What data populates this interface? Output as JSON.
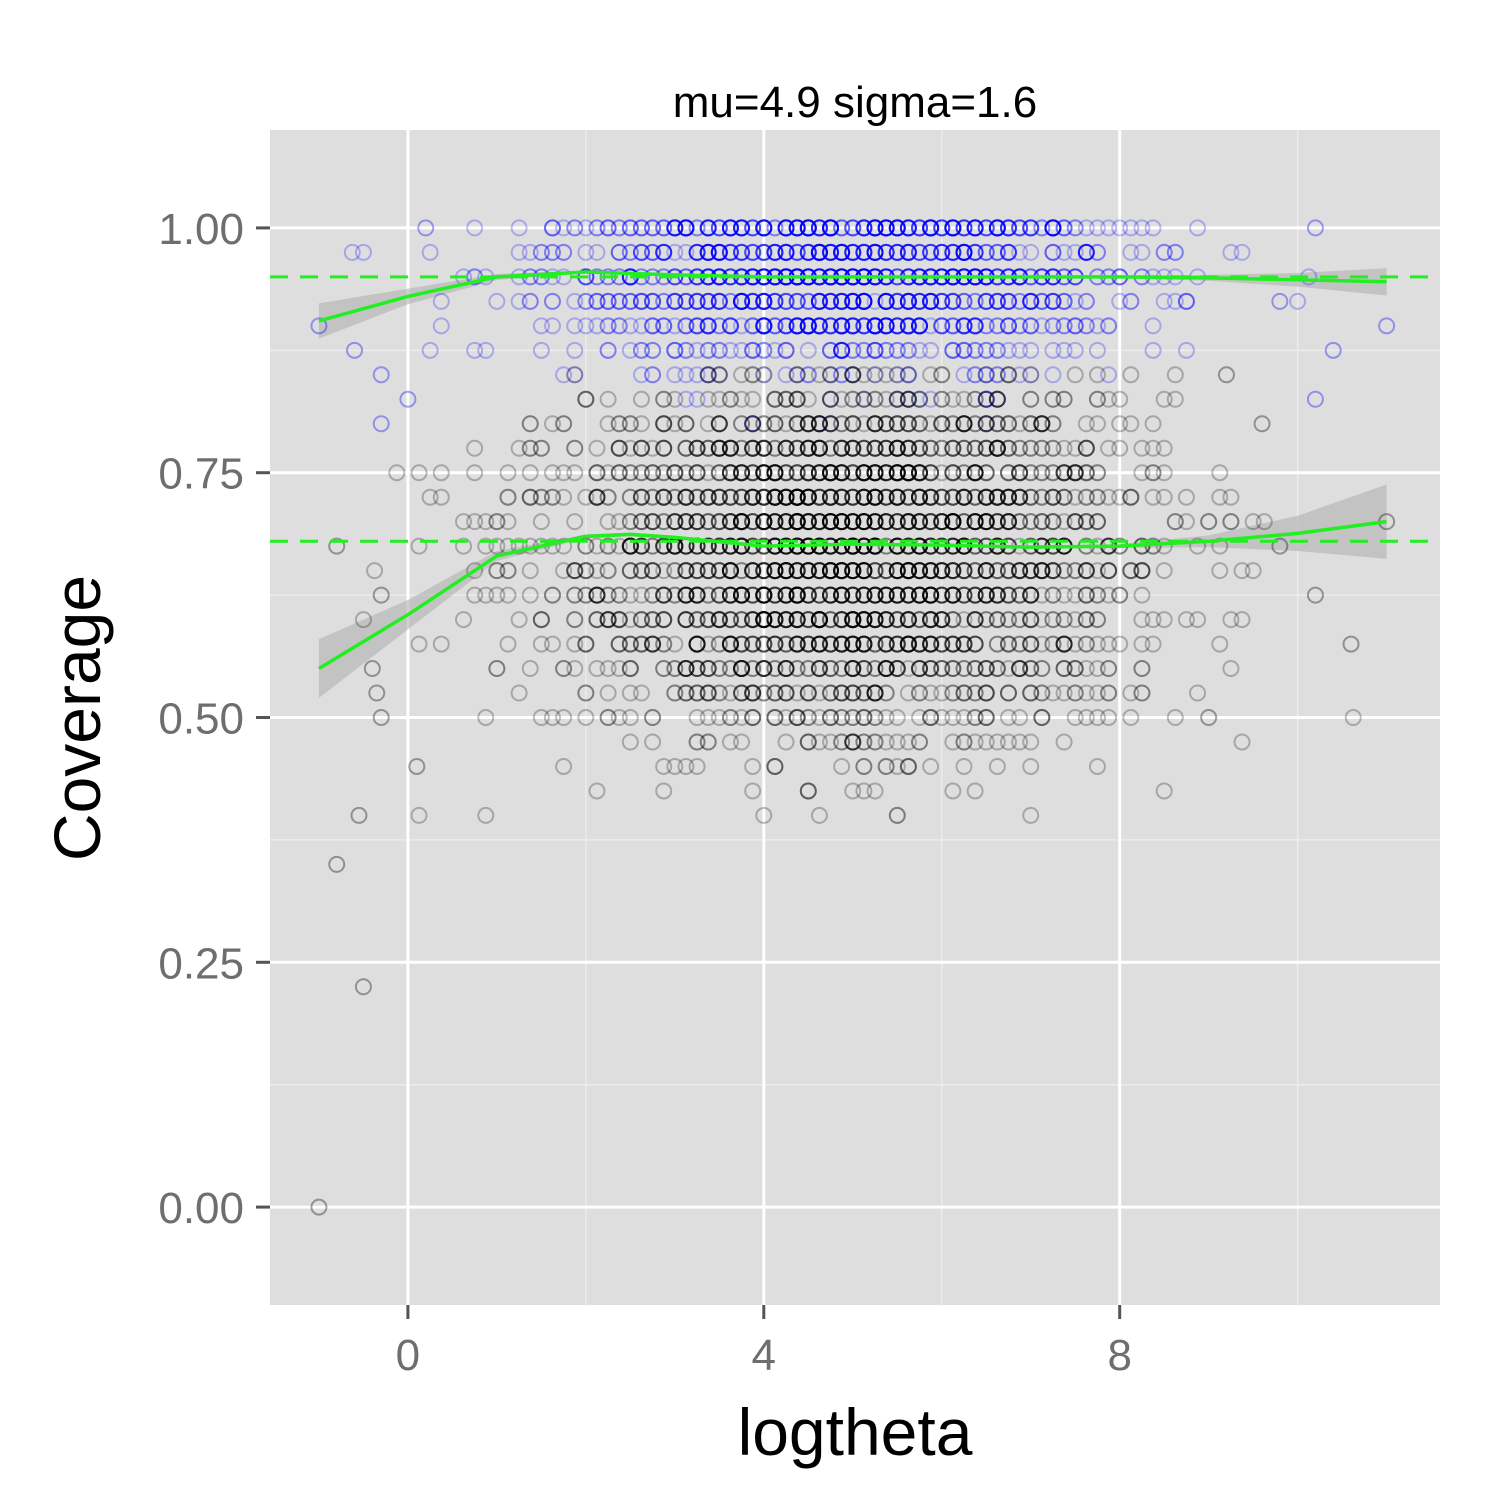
{
  "chart_data": {
    "type": "scatter",
    "title": "mu=4.9 sigma=1.6",
    "xlabel": "logtheta",
    "ylabel": "Coverage",
    "xlim": [
      -1.55,
      11.6
    ],
    "ylim": [
      -0.1,
      1.1
    ],
    "x_ticks": [
      0,
      4,
      8
    ],
    "x_tick_labels": [
      "0",
      "4",
      "8"
    ],
    "y_ticks": [
      0,
      0.25,
      0.5,
      0.75,
      1.0
    ],
    "y_tick_labels": [
      "0.00",
      "0.25",
      "0.50",
      "0.75",
      "1.00"
    ],
    "grid": true,
    "legend": "none",
    "reference_lines": [
      {
        "y": 0.95,
        "style": "dashed",
        "color": "#22ee22"
      },
      {
        "y": 0.68,
        "style": "dashed",
        "color": "#22ee22"
      }
    ],
    "series": [
      {
        "color": "#0000ff",
        "marker": "open-circle",
        "alpha": 0.25,
        "y_levels": [
          1.0,
          0.975,
          0.95,
          0.925,
          0.9,
          0.875,
          0.85,
          0.825,
          0.8
        ],
        "y_weights": [
          1.3,
          1.1,
          1.5,
          1.1,
          0.9,
          0.35,
          0.15,
          0.05,
          0.02
        ],
        "x_range": [
          -1,
          11
        ],
        "x_center": 4.9,
        "x_spread": 1.6,
        "outliers": [
          {
            "x": -1.0,
            "y": 0.9
          },
          {
            "x": -0.6,
            "y": 0.875
          },
          {
            "x": -0.3,
            "y": 0.85
          },
          {
            "x": -0.3,
            "y": 0.8
          },
          {
            "x": 0.0,
            "y": 0.825
          },
          {
            "x": 0.2,
            "y": 1.0
          },
          {
            "x": 9.8,
            "y": 0.925
          },
          {
            "x": 10.4,
            "y": 0.875
          },
          {
            "x": 10.2,
            "y": 0.825
          },
          {
            "x": 11.0,
            "y": 0.9
          },
          {
            "x": 10.2,
            "y": 1.0
          }
        ]
      },
      {
        "color": "#000000",
        "marker": "open-circle",
        "alpha": 0.25,
        "y_levels": [
          0.85,
          0.825,
          0.8,
          0.775,
          0.75,
          0.725,
          0.7,
          0.675,
          0.65,
          0.625,
          0.6,
          0.575,
          0.55,
          0.525,
          0.5,
          0.475,
          0.45,
          0.425,
          0.4
        ],
        "y_weights": [
          0.15,
          0.3,
          0.55,
          0.8,
          1.0,
          1.15,
          1.25,
          1.3,
          1.25,
          1.15,
          1.0,
          0.85,
          0.65,
          0.45,
          0.3,
          0.18,
          0.1,
          0.05,
          0.03
        ],
        "x_range": [
          -1,
          11
        ],
        "x_center": 4.9,
        "x_spread": 1.6,
        "outliers": [
          {
            "x": -1.0,
            "y": 0.0
          },
          {
            "x": -0.5,
            "y": 0.225
          },
          {
            "x": -0.8,
            "y": 0.35
          },
          {
            "x": -0.55,
            "y": 0.4
          },
          {
            "x": -0.3,
            "y": 0.5
          },
          {
            "x": -0.4,
            "y": 0.55
          },
          {
            "x": -0.35,
            "y": 0.525
          },
          {
            "x": -0.3,
            "y": 0.625
          },
          {
            "x": -0.8,
            "y": 0.675
          },
          {
            "x": 0.1,
            "y": 0.45
          },
          {
            "x": 10.6,
            "y": 0.575
          },
          {
            "x": 10.2,
            "y": 0.625
          },
          {
            "x": 11.0,
            "y": 0.7
          },
          {
            "x": 9.8,
            "y": 0.675
          },
          {
            "x": 9.6,
            "y": 0.8
          },
          {
            "x": 9.2,
            "y": 0.85
          },
          {
            "x": 9.0,
            "y": 0.5
          }
        ]
      }
    ],
    "smooth_lines": [
      {
        "color": "#22ee22",
        "ribbon_color": "#b0b0b0",
        "x": [
          -1.0,
          0.0,
          1.0,
          2.0,
          3.0,
          4.0,
          5.0,
          6.0,
          7.0,
          8.0,
          9.0,
          10.0,
          11.0
        ],
        "y": [
          0.905,
          0.93,
          0.95,
          0.955,
          0.952,
          0.95,
          0.95,
          0.95,
          0.95,
          0.95,
          0.949,
          0.947,
          0.945
        ],
        "se": [
          0.018,
          0.008,
          0.003,
          0.0015,
          0.001,
          0.001,
          0.001,
          0.001,
          0.001,
          0.0015,
          0.003,
          0.007,
          0.014
        ]
      },
      {
        "color": "#22ee22",
        "ribbon_color": "#b0b0b0",
        "x": [
          -1.0,
          0.0,
          1.0,
          2.0,
          2.5,
          3.0,
          4.0,
          5.0,
          6.0,
          7.0,
          8.0,
          9.0,
          10.0,
          11.0
        ],
        "y": [
          0.55,
          0.605,
          0.665,
          0.685,
          0.687,
          0.684,
          0.675,
          0.677,
          0.676,
          0.674,
          0.675,
          0.68,
          0.688,
          0.7
        ],
        "se": [
          0.03,
          0.015,
          0.005,
          0.002,
          0.002,
          0.0015,
          0.0015,
          0.0015,
          0.0015,
          0.0015,
          0.002,
          0.006,
          0.018,
          0.038
        ]
      }
    ]
  }
}
